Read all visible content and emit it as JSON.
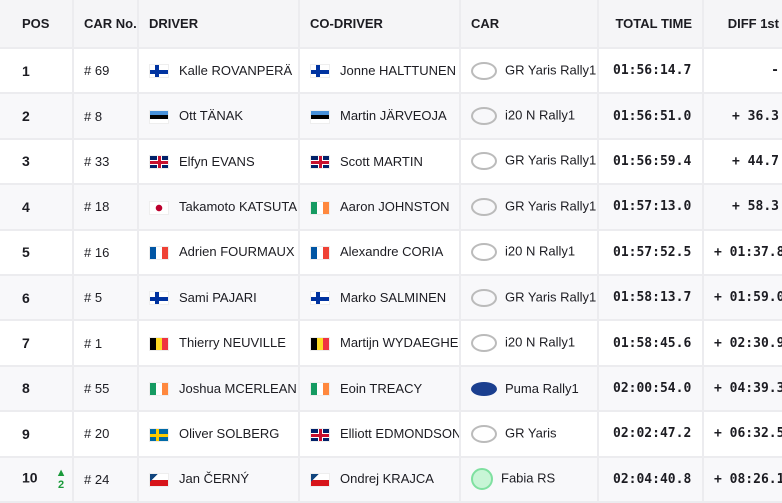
{
  "headers": {
    "pos": "POS",
    "car_no": "CAR No.",
    "driver": "DRIVER",
    "co_driver": "CO-DRIVER",
    "car": "CAR",
    "total_time": "TOTAL TIME",
    "diff": "DIFF 1st"
  },
  "rows": [
    {
      "pos": "1",
      "car_no": "# 69",
      "driver": "Kalle ROVANPERÄ",
      "driver_flag": "FI",
      "co_driver": "Jonne HALTTUNEN",
      "co_flag": "FI",
      "brand": "toyota",
      "car": "GR Yaris Rally1",
      "time": "01:56:14.7",
      "diff": "-"
    },
    {
      "pos": "2",
      "car_no": "# 8",
      "driver": "Ott TÄNAK",
      "driver_flag": "EE",
      "co_driver": "Martin JÄRVEOJA",
      "co_flag": "EE",
      "brand": "hyundai",
      "car": "i20 N Rally1",
      "time": "01:56:51.0",
      "diff": "+ 36.3"
    },
    {
      "pos": "3",
      "car_no": "# 33",
      "driver": "Elfyn EVANS",
      "driver_flag": "GB",
      "co_driver": "Scott MARTIN",
      "co_flag": "GB",
      "brand": "toyota",
      "car": "GR Yaris Rally1",
      "time": "01:56:59.4",
      "diff": "+ 44.7"
    },
    {
      "pos": "4",
      "car_no": "# 18",
      "driver": "Takamoto KATSUTA",
      "driver_flag": "JP",
      "co_driver": "Aaron JOHNSTON",
      "co_flag": "IE",
      "brand": "toyota",
      "car": "GR Yaris Rally1",
      "time": "01:57:13.0",
      "diff": "+ 58.3"
    },
    {
      "pos": "5",
      "car_no": "# 16",
      "driver": "Adrien FOURMAUX",
      "driver_flag": "FR",
      "co_driver": "Alexandre CORIA",
      "co_flag": "FR",
      "brand": "hyundai",
      "car": "i20 N Rally1",
      "time": "01:57:52.5",
      "diff": "+ 01:37.8"
    },
    {
      "pos": "6",
      "car_no": "# 5",
      "driver": "Sami PAJARI",
      "driver_flag": "FI",
      "co_driver": "Marko SALMINEN",
      "co_flag": "FI",
      "brand": "toyota",
      "car": "GR Yaris Rally1",
      "time": "01:58:13.7",
      "diff": "+ 01:59.0"
    },
    {
      "pos": "7",
      "car_no": "# 1",
      "driver": "Thierry NEUVILLE",
      "driver_flag": "BE",
      "co_driver": "Martijn WYDAEGHE",
      "co_flag": "BE",
      "brand": "hyundai",
      "car": "i20 N Rally1",
      "time": "01:58:45.6",
      "diff": "+ 02:30.9"
    },
    {
      "pos": "8",
      "car_no": "# 55",
      "driver": "Joshua MCERLEAN",
      "driver_flag": "IE",
      "co_driver": "Eoin TREACY",
      "co_flag": "IE",
      "brand": "ford",
      "car": "Puma Rally1",
      "time": "02:00:54.0",
      "diff": "+ 04:39.3"
    },
    {
      "pos": "9",
      "car_no": "# 20",
      "driver": "Oliver SOLBERG",
      "driver_flag": "SE",
      "co_driver": "Elliott EDMONDSON",
      "co_flag": "GB",
      "brand": "toyota",
      "car": "GR Yaris",
      "time": "02:02:47.2",
      "diff": "+ 06:32.5"
    },
    {
      "pos": "10",
      "pos_change": "2",
      "car_no": "# 24",
      "driver": "Jan ČERNÝ",
      "driver_flag": "CZ",
      "co_driver": "Ondrej KRAJCA",
      "co_flag": "CZ",
      "brand": "skoda",
      "car": "Fabia RS",
      "time": "02:04:40.8",
      "diff": "+ 08:26.1"
    }
  ],
  "colors": {
    "header_bg": "#f5f5f7",
    "alt_row_bg": "#f8f8fa",
    "gain": "#1a9a3a"
  }
}
